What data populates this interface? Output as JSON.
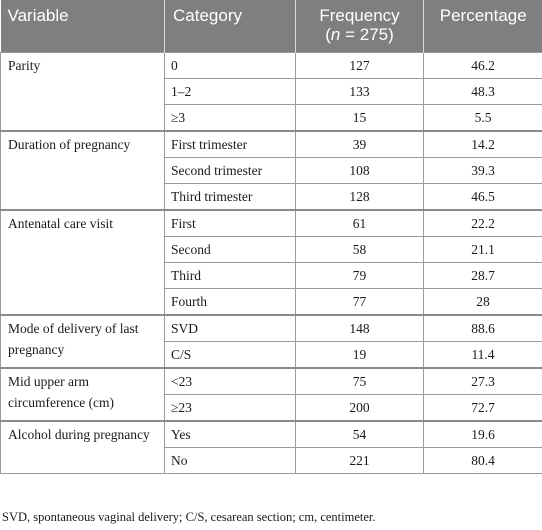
{
  "headers": {
    "variable": "Variable",
    "category": "Category",
    "frequency_line1": "Frequency",
    "frequency_line2_n": "n",
    "frequency_line2_rest": " = 275)",
    "frequency_line2_open": "(",
    "percentage": "Percentage"
  },
  "groups": [
    {
      "variable": "Parity",
      "rows": [
        {
          "category": "0",
          "frequency": "127",
          "percentage": "46.2"
        },
        {
          "category": "1–2",
          "frequency": "133",
          "percentage": "48.3"
        },
        {
          "category": "≥3",
          "frequency": "15",
          "percentage": "5.5"
        }
      ]
    },
    {
      "variable": "Duration of pregnancy",
      "rows": [
        {
          "category": "First trimester",
          "frequency": "39",
          "percentage": "14.2"
        },
        {
          "category": "Second trimester",
          "frequency": "108",
          "percentage": "39.3"
        },
        {
          "category": "Third trimester",
          "frequency": "128",
          "percentage": "46.5"
        }
      ]
    },
    {
      "variable": "Antenatal care visit",
      "rows": [
        {
          "category": "First",
          "frequency": "61",
          "percentage": "22.2"
        },
        {
          "category": "Second",
          "frequency": "58",
          "percentage": "21.1"
        },
        {
          "category": "Third",
          "frequency": "79",
          "percentage": "28.7"
        },
        {
          "category": "Fourth",
          "frequency": "77",
          "percentage": "28"
        }
      ]
    },
    {
      "variable": "Mode of delivery of last pregnancy",
      "rows": [
        {
          "category": "SVD",
          "frequency": "148",
          "percentage": "88.6"
        },
        {
          "category": "C/S",
          "frequency": "19",
          "percentage": "11.4"
        }
      ]
    },
    {
      "variable": "Mid upper arm circumference (cm)",
      "rows": [
        {
          "category": "<23",
          "frequency": "75",
          "percentage": "27.3"
        },
        {
          "category": "≥23",
          "frequency": "200",
          "percentage": "72.7"
        }
      ]
    },
    {
      "variable": "Alcohol during pregnancy",
      "rows": [
        {
          "category": "Yes",
          "frequency": "54",
          "percentage": "19.6"
        },
        {
          "category": "No",
          "frequency": "221",
          "percentage": "80.4"
        }
      ]
    }
  ],
  "footnote": "SVD, spontaneous vaginal delivery; C/S, cesarean section; cm, centimeter.",
  "colors": {
    "header_bg": "#7f7f7f",
    "header_text": "#ffffff",
    "border": "#9a9a9a"
  }
}
